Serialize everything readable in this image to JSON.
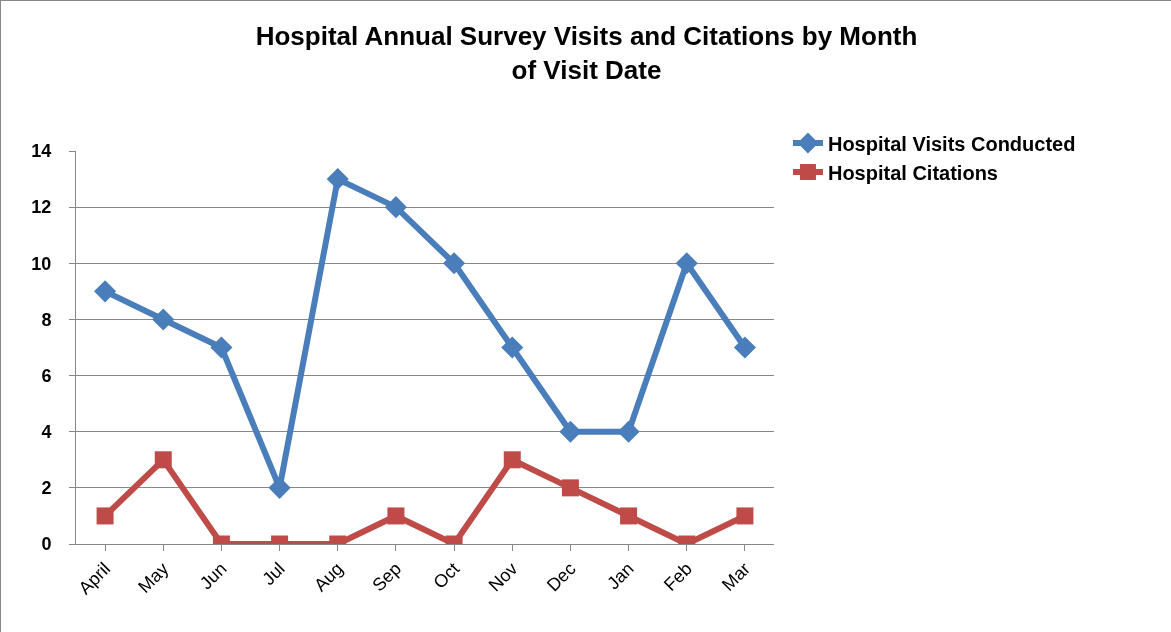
{
  "chart_data": {
    "type": "line",
    "title": "Hospital Annual Survey Visits and Citations by Month of Visit Date",
    "categories": [
      "April",
      "May",
      "Jun",
      "Jul",
      "Aug",
      "Sep",
      "Oct",
      "Nov",
      "Dec",
      "Jan",
      "Feb",
      "Mar"
    ],
    "series": [
      {
        "name": "Hospital Visits Conducted",
        "color": "#4a7ebb",
        "marker": "diamond",
        "values": [
          9,
          8,
          7,
          2,
          13,
          12,
          10,
          7,
          4,
          4,
          10,
          7
        ]
      },
      {
        "name": "Hospital Citations",
        "color": "#be4b48",
        "marker": "square",
        "values": [
          1,
          3,
          0,
          0,
          0,
          1,
          0,
          3,
          2,
          1,
          0,
          1
        ]
      }
    ],
    "ylim": [
      0,
      14
    ],
    "yticks": [
      0,
      2,
      4,
      6,
      8,
      10,
      12,
      14
    ],
    "grid": "y",
    "legend": "top right",
    "line_style": "solid"
  }
}
